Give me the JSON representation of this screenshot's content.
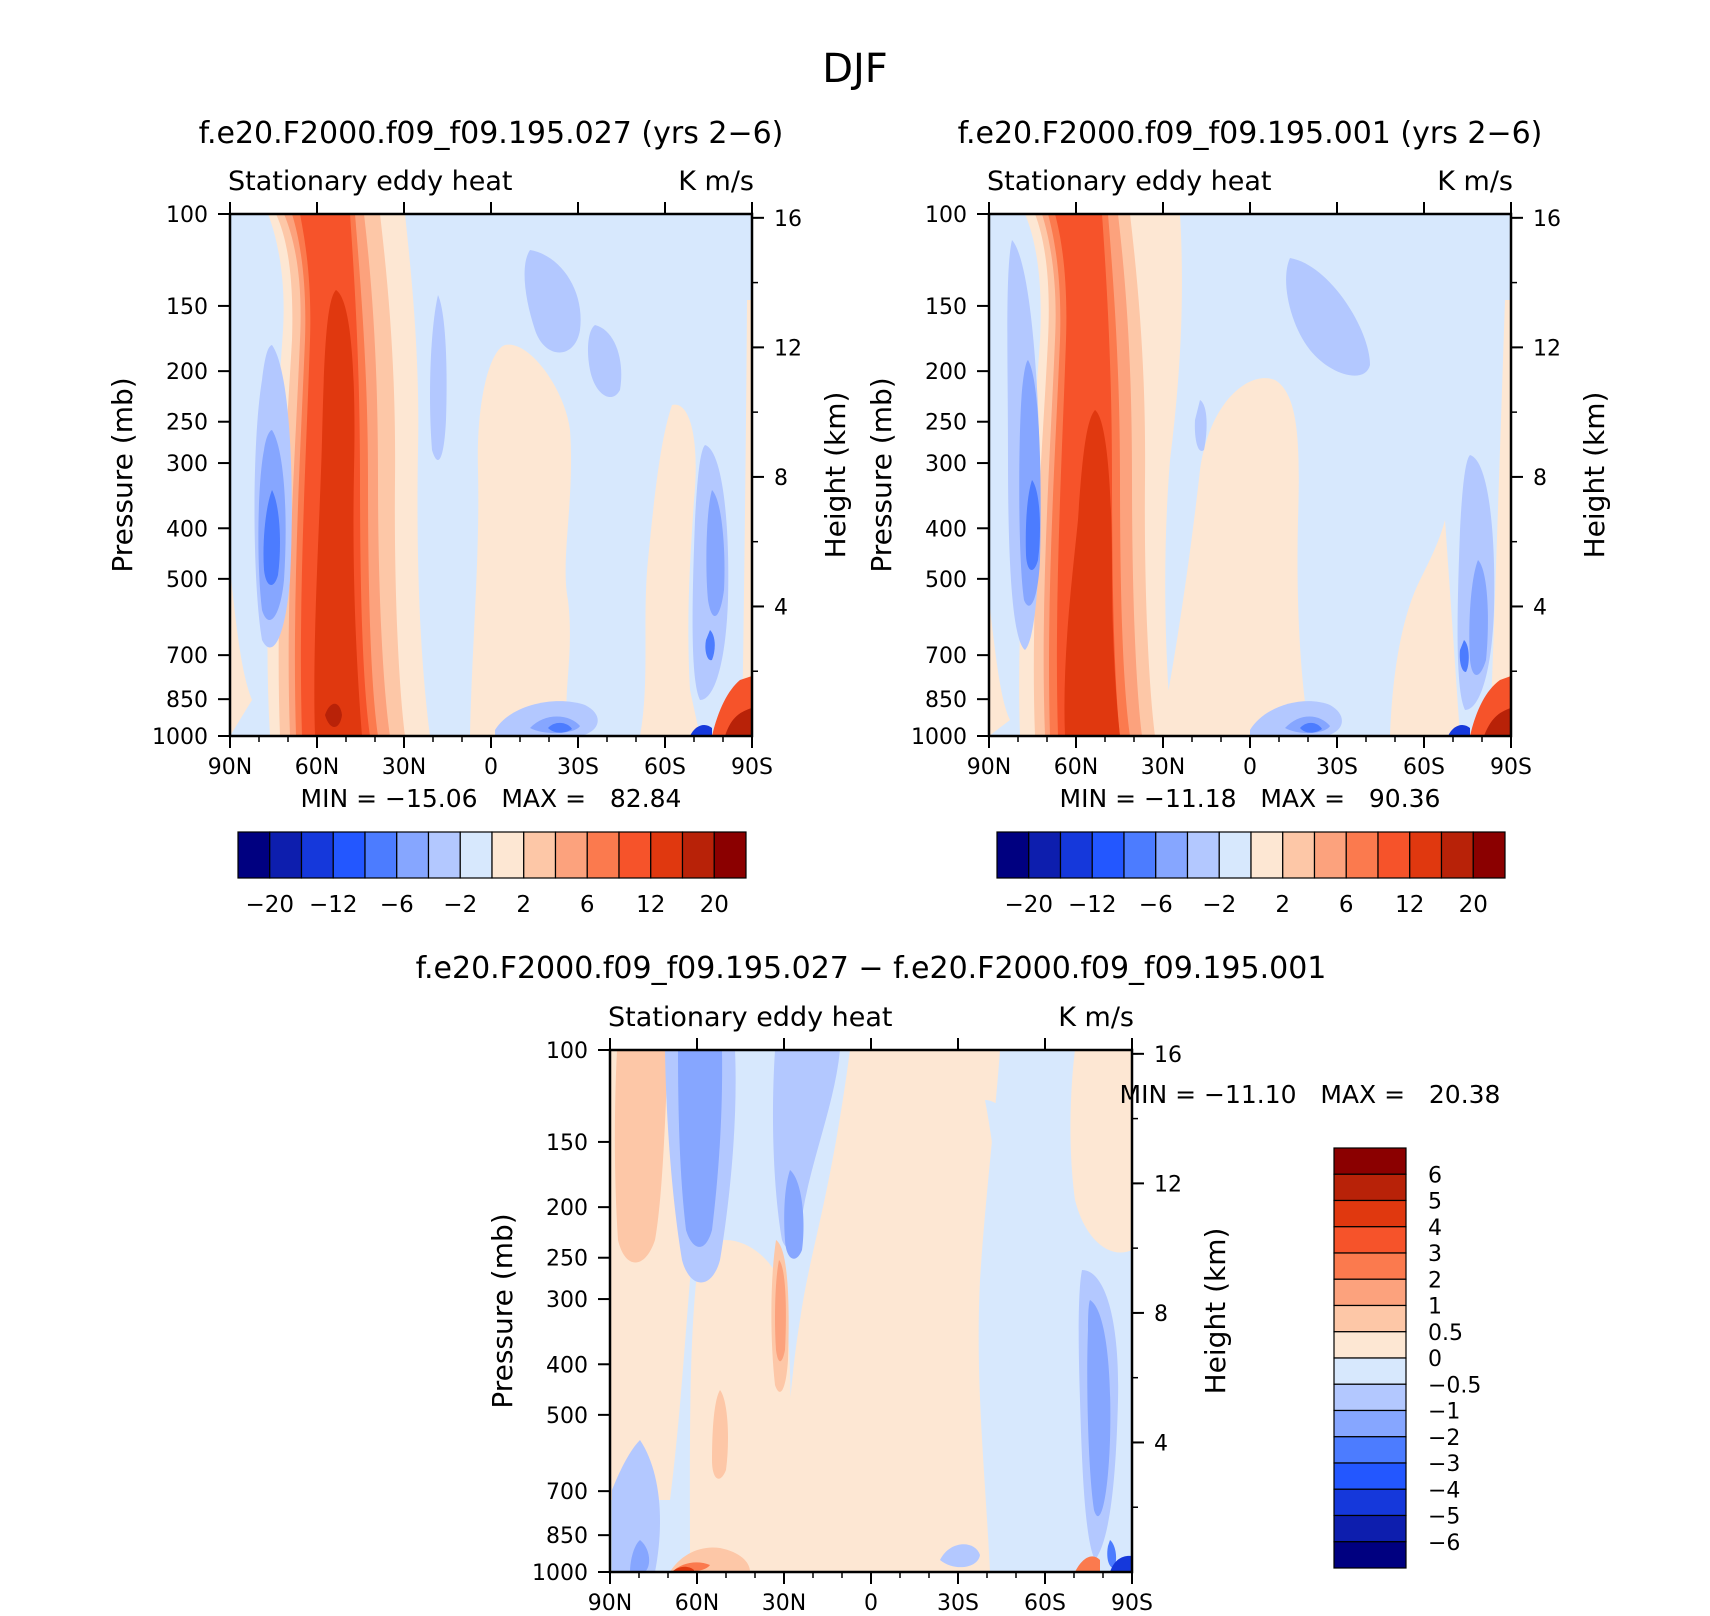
{
  "figure": {
    "title": "DJF"
  },
  "colors": {
    "ticks": [
      "#000080",
      "#0d1eae",
      "#1538db",
      "#2357ff",
      "#4c7cff",
      "#86a6ff",
      "#b3c8ff",
      "#d7e8fd",
      "#fde7d3",
      "#fdc7a7",
      "#fca27d",
      "#fb7a4e",
      "#f6532a",
      "#e0380f",
      "#b82208",
      "#8b0000"
    ],
    "neutral": "#d7e8fd",
    "positive_light": "#fde7d3"
  },
  "chart_data": [
    {
      "id": "top-left",
      "type": "heatmap",
      "title": "f.e20.F2000.f09_f09.195.027 (yrs 2−6)",
      "subtitle_left": "Stationary eddy heat",
      "subtitle_right": "K m/s",
      "ylabel": "Pressure (mb)",
      "ylabel_right": "Height (km)",
      "x_ticks": [
        "90N",
        "60N",
        "30N",
        "0",
        "30S",
        "60S",
        "90S"
      ],
      "x_range": [
        90,
        -90
      ],
      "y_ticks": [
        "100",
        "150",
        "200",
        "250",
        "300",
        "400",
        "500",
        "700",
        "850",
        "1000"
      ],
      "y_range": [
        100,
        1000
      ],
      "height_ticks": [
        "4",
        "8",
        "12",
        "16"
      ],
      "minmax": "MIN = −15.06   MAX =   82.84",
      "colorbar_labels": [
        "−20",
        "−12",
        "−6",
        "−2",
        "2",
        "6",
        "12",
        "20"
      ],
      "levels": [
        -20,
        -16,
        -12,
        -9,
        -6,
        -4,
        -2,
        0,
        2,
        4,
        6,
        9,
        12,
        16,
        20
      ]
    },
    {
      "id": "top-right",
      "type": "heatmap",
      "title": "f.e20.F2000.f09_f09.195.001 (yrs 2−6)",
      "subtitle_left": "Stationary eddy heat",
      "subtitle_right": "K m/s",
      "ylabel": "Pressure (mb)",
      "ylabel_right": "Height (km)",
      "x_ticks": [
        "90N",
        "60N",
        "30N",
        "0",
        "30S",
        "60S",
        "90S"
      ],
      "x_range": [
        90,
        -90
      ],
      "y_ticks": [
        "100",
        "150",
        "200",
        "250",
        "300",
        "400",
        "500",
        "700",
        "850",
        "1000"
      ],
      "y_range": [
        100,
        1000
      ],
      "height_ticks": [
        "4",
        "8",
        "12",
        "16"
      ],
      "minmax": "MIN = −11.18   MAX =   90.36",
      "colorbar_labels": [
        "−20",
        "−12",
        "−6",
        "−2",
        "2",
        "6",
        "12",
        "20"
      ],
      "levels": [
        -20,
        -16,
        -12,
        -9,
        -6,
        -4,
        -2,
        0,
        2,
        4,
        6,
        9,
        12,
        16,
        20
      ]
    },
    {
      "id": "bottom",
      "type": "heatmap",
      "title": "f.e20.F2000.f09_f09.195.027 − f.e20.F2000.f09_f09.195.001",
      "subtitle_left": "Stationary eddy heat",
      "subtitle_right": "K m/s",
      "ylabel": "Pressure (mb)",
      "ylabel_right": "Height (km)",
      "x_ticks": [
        "90N",
        "60N",
        "30N",
        "0",
        "30S",
        "60S",
        "90S"
      ],
      "x_range": [
        90,
        -90
      ],
      "y_ticks": [
        "100",
        "150",
        "200",
        "250",
        "300",
        "400",
        "500",
        "700",
        "850",
        "1000"
      ],
      "y_range": [
        100,
        1000
      ],
      "height_ticks": [
        "4",
        "8",
        "12",
        "16"
      ],
      "minmax": "MIN = −11.10   MAX =   20.38",
      "colorbar_labels": [
        "6",
        "5",
        "4",
        "3",
        "2",
        "1",
        "0.5",
        "0",
        "−0.5",
        "−1",
        "−2",
        "−3",
        "−4",
        "−5",
        "−6"
      ],
      "levels": [
        -6,
        -5,
        -4,
        -3,
        -2,
        -1,
        -0.5,
        0,
        0.5,
        1,
        2,
        3,
        4,
        5,
        6
      ]
    }
  ]
}
